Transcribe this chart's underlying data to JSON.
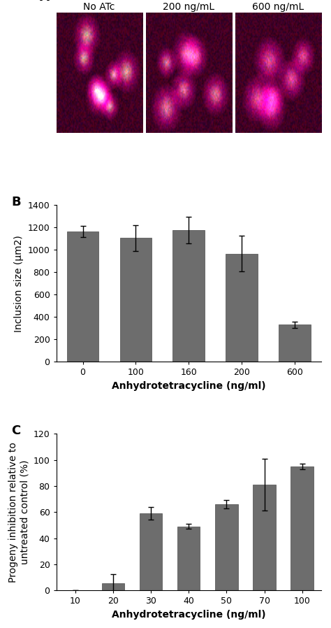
{
  "panel_A_labels": [
    "No ATc",
    "200 ng/mL",
    "600 ng/mL"
  ],
  "panel_B_categories": [
    "0",
    "100",
    "160",
    "200",
    "600"
  ],
  "panel_B_values": [
    1165,
    1105,
    1175,
    965,
    330
  ],
  "panel_B_errors": [
    50,
    115,
    120,
    160,
    30
  ],
  "panel_B_ylabel": "Inclusion size (μm2)",
  "panel_B_xlabel": "Anhydrotetracycline (ng/ml)",
  "panel_B_ylim": [
    0,
    1400
  ],
  "panel_B_yticks": [
    0,
    200,
    400,
    600,
    800,
    1000,
    1200,
    1400
  ],
  "panel_C_categories": [
    "10",
    "20",
    "30",
    "40",
    "50",
    "70",
    "100"
  ],
  "panel_C_values": [
    0,
    5.5,
    59,
    49,
    66,
    81,
    95
  ],
  "panel_C_errors": [
    0,
    7,
    5,
    2,
    3,
    20,
    2
  ],
  "panel_C_ylabel": "Progeny inhibition relative to\nuntreated control (%)",
  "panel_C_xlabel": "Anhydrotetracycline (ng/ml)",
  "panel_C_ylim": [
    0,
    120
  ],
  "panel_C_yticks": [
    0,
    20,
    40,
    60,
    80,
    100,
    120
  ],
  "bar_color": "#6d6d6d",
  "bar_edgecolor": "#4a4a4a",
  "panel_label_fontsize": 13,
  "axis_label_fontsize": 10,
  "tick_fontsize": 9,
  "background_color": "#ffffff"
}
